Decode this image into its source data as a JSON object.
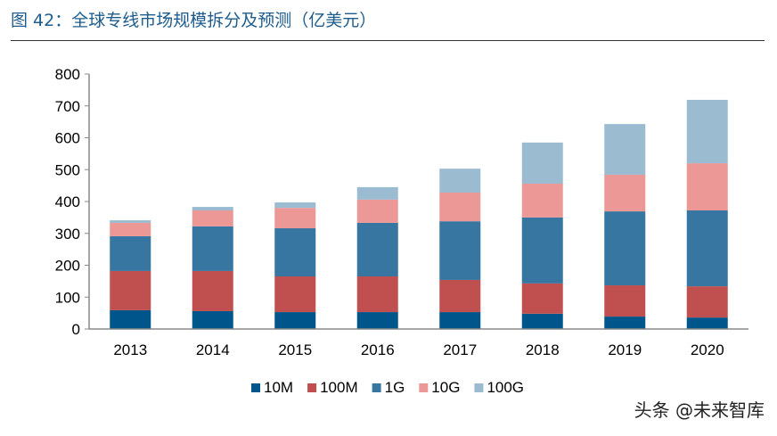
{
  "title": "图 42：全球专线市场规模拆分及预测（亿美元）",
  "watermark": "头条 @未来智库",
  "chart_data": {
    "type": "bar",
    "stacked": true,
    "title": "图 42：全球专线市场规模拆分及预测（亿美元）",
    "xlabel": "",
    "ylabel": "",
    "ylim": [
      0,
      800
    ],
    "yticks": [
      0,
      100,
      200,
      300,
      400,
      500,
      600,
      700,
      800
    ],
    "grid": false,
    "legend_position": "bottom",
    "categories": [
      "2013",
      "2014",
      "2015",
      "2016",
      "2017",
      "2018",
      "2019",
      "2020"
    ],
    "series": [
      {
        "name": "10M",
        "color": "#00558a",
        "values": [
          59,
          56,
          53,
          53,
          53,
          48,
          39,
          36
        ]
      },
      {
        "name": "100M",
        "color": "#c0504f",
        "values": [
          123,
          126,
          112,
          112,
          101,
          95,
          98,
          98
        ]
      },
      {
        "name": "1G",
        "color": "#3676a0",
        "values": [
          109,
          140,
          151,
          168,
          184,
          207,
          232,
          238
        ]
      },
      {
        "name": "10G",
        "color": "#eb9897",
        "values": [
          42,
          50,
          64,
          73,
          90,
          106,
          115,
          148
        ]
      },
      {
        "name": "100G",
        "color": "#9bbbd1",
        "values": [
          8,
          11,
          17,
          39,
          75,
          129,
          159,
          199
        ]
      }
    ]
  }
}
